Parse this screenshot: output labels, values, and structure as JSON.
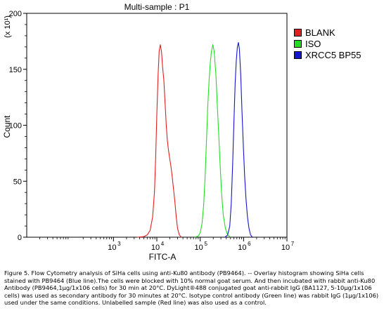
{
  "chart_data": {
    "type": "line",
    "title": "Multi-sample : P1",
    "xlabel": "FITC-A",
    "ylabel": "Count",
    "y_scale_label": "(x 10¹)",
    "x_scale": "log",
    "xlim": [
      10,
      10000000
    ],
    "ylim": [
      0,
      200
    ],
    "x_ticks": [
      {
        "value": 1000,
        "base": "10",
        "exp": "3"
      },
      {
        "value": 10000,
        "base": "10",
        "exp": "4"
      },
      {
        "value": 100000,
        "base": "10",
        "exp": "5"
      },
      {
        "value": 1000000,
        "base": "10",
        "exp": "6"
      },
      {
        "value": 10000000,
        "base": "10",
        "exp": "7"
      }
    ],
    "y_ticks": [
      0,
      50,
      100,
      150,
      200
    ],
    "series": [
      {
        "name": "BLANK",
        "color": "#e02020",
        "points": [
          [
            3500,
            0
          ],
          [
            5000,
            0.5
          ],
          [
            6000,
            2
          ],
          [
            7000,
            6
          ],
          [
            8000,
            18
          ],
          [
            8800,
            40
          ],
          [
            9400,
            70
          ],
          [
            10000,
            110
          ],
          [
            10700,
            145
          ],
          [
            11300,
            166
          ],
          [
            12000,
            172
          ],
          [
            12800,
            166
          ],
          [
            13600,
            152
          ],
          [
            14500,
            140
          ],
          [
            15500,
            120
          ],
          [
            16500,
            100
          ],
          [
            17500,
            86
          ],
          [
            18500,
            78
          ],
          [
            19500,
            72
          ],
          [
            21000,
            64
          ],
          [
            22500,
            55
          ],
          [
            24000,
            45
          ],
          [
            26000,
            32
          ],
          [
            28000,
            18
          ],
          [
            30000,
            8
          ],
          [
            33000,
            2
          ],
          [
            37000,
            0
          ]
        ]
      },
      {
        "name": "ISO",
        "color": "#22dd22",
        "points": [
          [
            75000,
            0
          ],
          [
            90000,
            1
          ],
          [
            100000,
            4
          ],
          [
            110000,
            12
          ],
          [
            120000,
            28
          ],
          [
            130000,
            55
          ],
          [
            140000,
            88
          ],
          [
            150000,
            118
          ],
          [
            160000,
            140
          ],
          [
            170000,
            155
          ],
          [
            180000,
            165
          ],
          [
            195000,
            172
          ],
          [
            210000,
            166
          ],
          [
            230000,
            145
          ],
          [
            250000,
            115
          ],
          [
            270000,
            88
          ],
          [
            290000,
            62
          ],
          [
            310000,
            40
          ],
          [
            340000,
            20
          ],
          [
            380000,
            8
          ],
          [
            430000,
            2
          ],
          [
            500000,
            0
          ]
        ]
      },
      {
        "name": "XRCC5 BP55",
        "color": "#1515d0",
        "points": [
          [
            370000,
            0
          ],
          [
            430000,
            2
          ],
          [
            480000,
            10
          ],
          [
            520000,
            30
          ],
          [
            560000,
            65
          ],
          [
            600000,
            105
          ],
          [
            640000,
            138
          ],
          [
            680000,
            158
          ],
          [
            720000,
            170
          ],
          [
            760000,
            174
          ],
          [
            800000,
            168
          ],
          [
            860000,
            145
          ],
          [
            920000,
            112
          ],
          [
            990000,
            80
          ],
          [
            1060000,
            54
          ],
          [
            1140000,
            34
          ],
          [
            1230000,
            18
          ],
          [
            1330000,
            8
          ],
          [
            1450000,
            2
          ],
          [
            1600000,
            0
          ]
        ]
      }
    ],
    "legend_position": "top-right"
  },
  "caption": "Figure 5. Flow Cytometry analysis of SiHa cells using anti-Ku80 antibody (PB9464). -- Overlay histogram showing SiHa cells stained with PB9464 (Blue line).The cells were blocked with 10% normal goat serum. And then incubated with rabbit anti-Ku80 Antibody (PB9464,1µg/1x106 cells) for 30 min at 20°C. DyLight®488 conjugated goat anti-rabbit IgG (BA1127, 5-10µg/1x106 cells) was used as secondary antibody for 30 minutes at 20°C. Isotype control antibody (Green line) was rabbit IgG (1µg/1x106) used under the same conditions. Unlabelled sample (Red line) was also used as a control."
}
